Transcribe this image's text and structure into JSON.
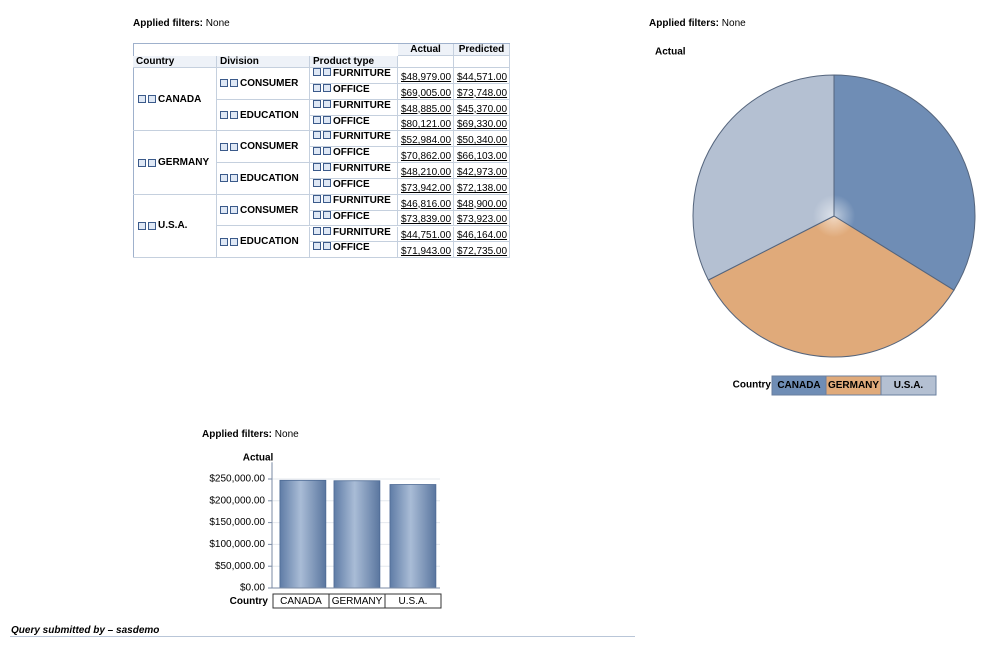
{
  "filters": [
    {
      "label": "Applied filters:",
      "value": "None"
    },
    {
      "label": "Applied filters:",
      "value": "None"
    },
    {
      "label": "Applied filters:",
      "value": "None"
    }
  ],
  "table": {
    "columns": [
      "Country",
      "Division",
      "Product type",
      "Actual",
      "Predicted"
    ],
    "groups": [
      {
        "country": "CANADA",
        "divisions": [
          {
            "division": "CONSUMER",
            "rows": [
              {
                "product": "FURNITURE",
                "actual": "$48,979.00",
                "predicted": "$44,571.00"
              },
              {
                "product": "OFFICE",
                "actual": "$69,005.00",
                "predicted": "$73,748.00"
              }
            ]
          },
          {
            "division": "EDUCATION",
            "rows": [
              {
                "product": "FURNITURE",
                "actual": "$48,885.00",
                "predicted": "$45,370.00"
              },
              {
                "product": "OFFICE",
                "actual": "$80,121.00",
                "predicted": "$69,330.00"
              }
            ]
          }
        ]
      },
      {
        "country": "GERMANY",
        "divisions": [
          {
            "division": "CONSUMER",
            "rows": [
              {
                "product": "FURNITURE",
                "actual": "$52,984.00",
                "predicted": "$50,340.00"
              },
              {
                "product": "OFFICE",
                "actual": "$70,862.00",
                "predicted": "$66,103.00"
              }
            ]
          },
          {
            "division": "EDUCATION",
            "rows": [
              {
                "product": "FURNITURE",
                "actual": "$48,210.00",
                "predicted": "$42,973.00"
              },
              {
                "product": "OFFICE",
                "actual": "$73,942.00",
                "predicted": "$72,138.00"
              }
            ]
          }
        ]
      },
      {
        "country": "U.S.A.",
        "divisions": [
          {
            "division": "CONSUMER",
            "rows": [
              {
                "product": "FURNITURE",
                "actual": "$46,816.00",
                "predicted": "$48,900.00"
              },
              {
                "product": "OFFICE",
                "actual": "$73,839.00",
                "predicted": "$73,923.00"
              }
            ]
          },
          {
            "division": "EDUCATION",
            "rows": [
              {
                "product": "FURNITURE",
                "actual": "$44,751.00",
                "predicted": "$46,164.00"
              },
              {
                "product": "OFFICE",
                "actual": "$71,943.00",
                "predicted": "$72,735.00"
              }
            ]
          }
        ]
      }
    ]
  },
  "chart_data": [
    {
      "type": "pie",
      "title": "Actual",
      "legend_title": "Country",
      "categories": [
        "CANADA",
        "GERMANY",
        "U.S.A."
      ],
      "values": [
        246990,
        245998,
        237349
      ],
      "colors": [
        "#6f8db5",
        "#e0aa7a",
        "#b4c0d2"
      ]
    },
    {
      "type": "bar",
      "title": "Actual",
      "x_label": "Country",
      "categories": [
        "CANADA",
        "GERMANY",
        "U.S.A."
      ],
      "values": [
        246990,
        245998,
        237349
      ],
      "color": "#7f99bd",
      "ylim": [
        0,
        270000
      ],
      "yticks": [
        {
          "value": 0,
          "label": "$0.00"
        },
        {
          "value": 50000,
          "label": "$50,000.00"
        },
        {
          "value": 100000,
          "label": "$100,000.00"
        },
        {
          "value": 150000,
          "label": "$150,000.00"
        },
        {
          "value": 200000,
          "label": "$200,000.00"
        },
        {
          "value": 250000,
          "label": "$250,000.00"
        }
      ]
    }
  ],
  "footer": "Query submitted by – sasdemo"
}
